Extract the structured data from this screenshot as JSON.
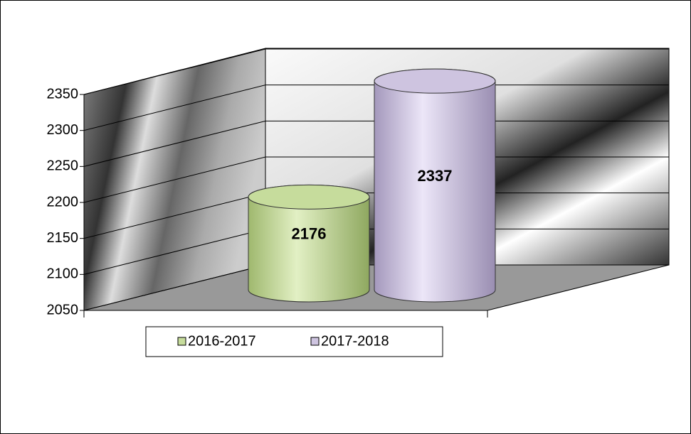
{
  "chart_data": {
    "type": "cylinder3d",
    "categories": [
      null
    ],
    "series": [
      {
        "name": "2016-2017",
        "color": "#c6dc9c",
        "values": [
          2176
        ]
      },
      {
        "name": "2017-2018",
        "color": "#cec4e0",
        "values": [
          2337
        ]
      }
    ],
    "ylim": [
      2050,
      2350
    ],
    "yticks": [
      2050,
      2100,
      2150,
      2200,
      2250,
      2300,
      2350
    ],
    "grid": true,
    "legend": "bottom"
  }
}
